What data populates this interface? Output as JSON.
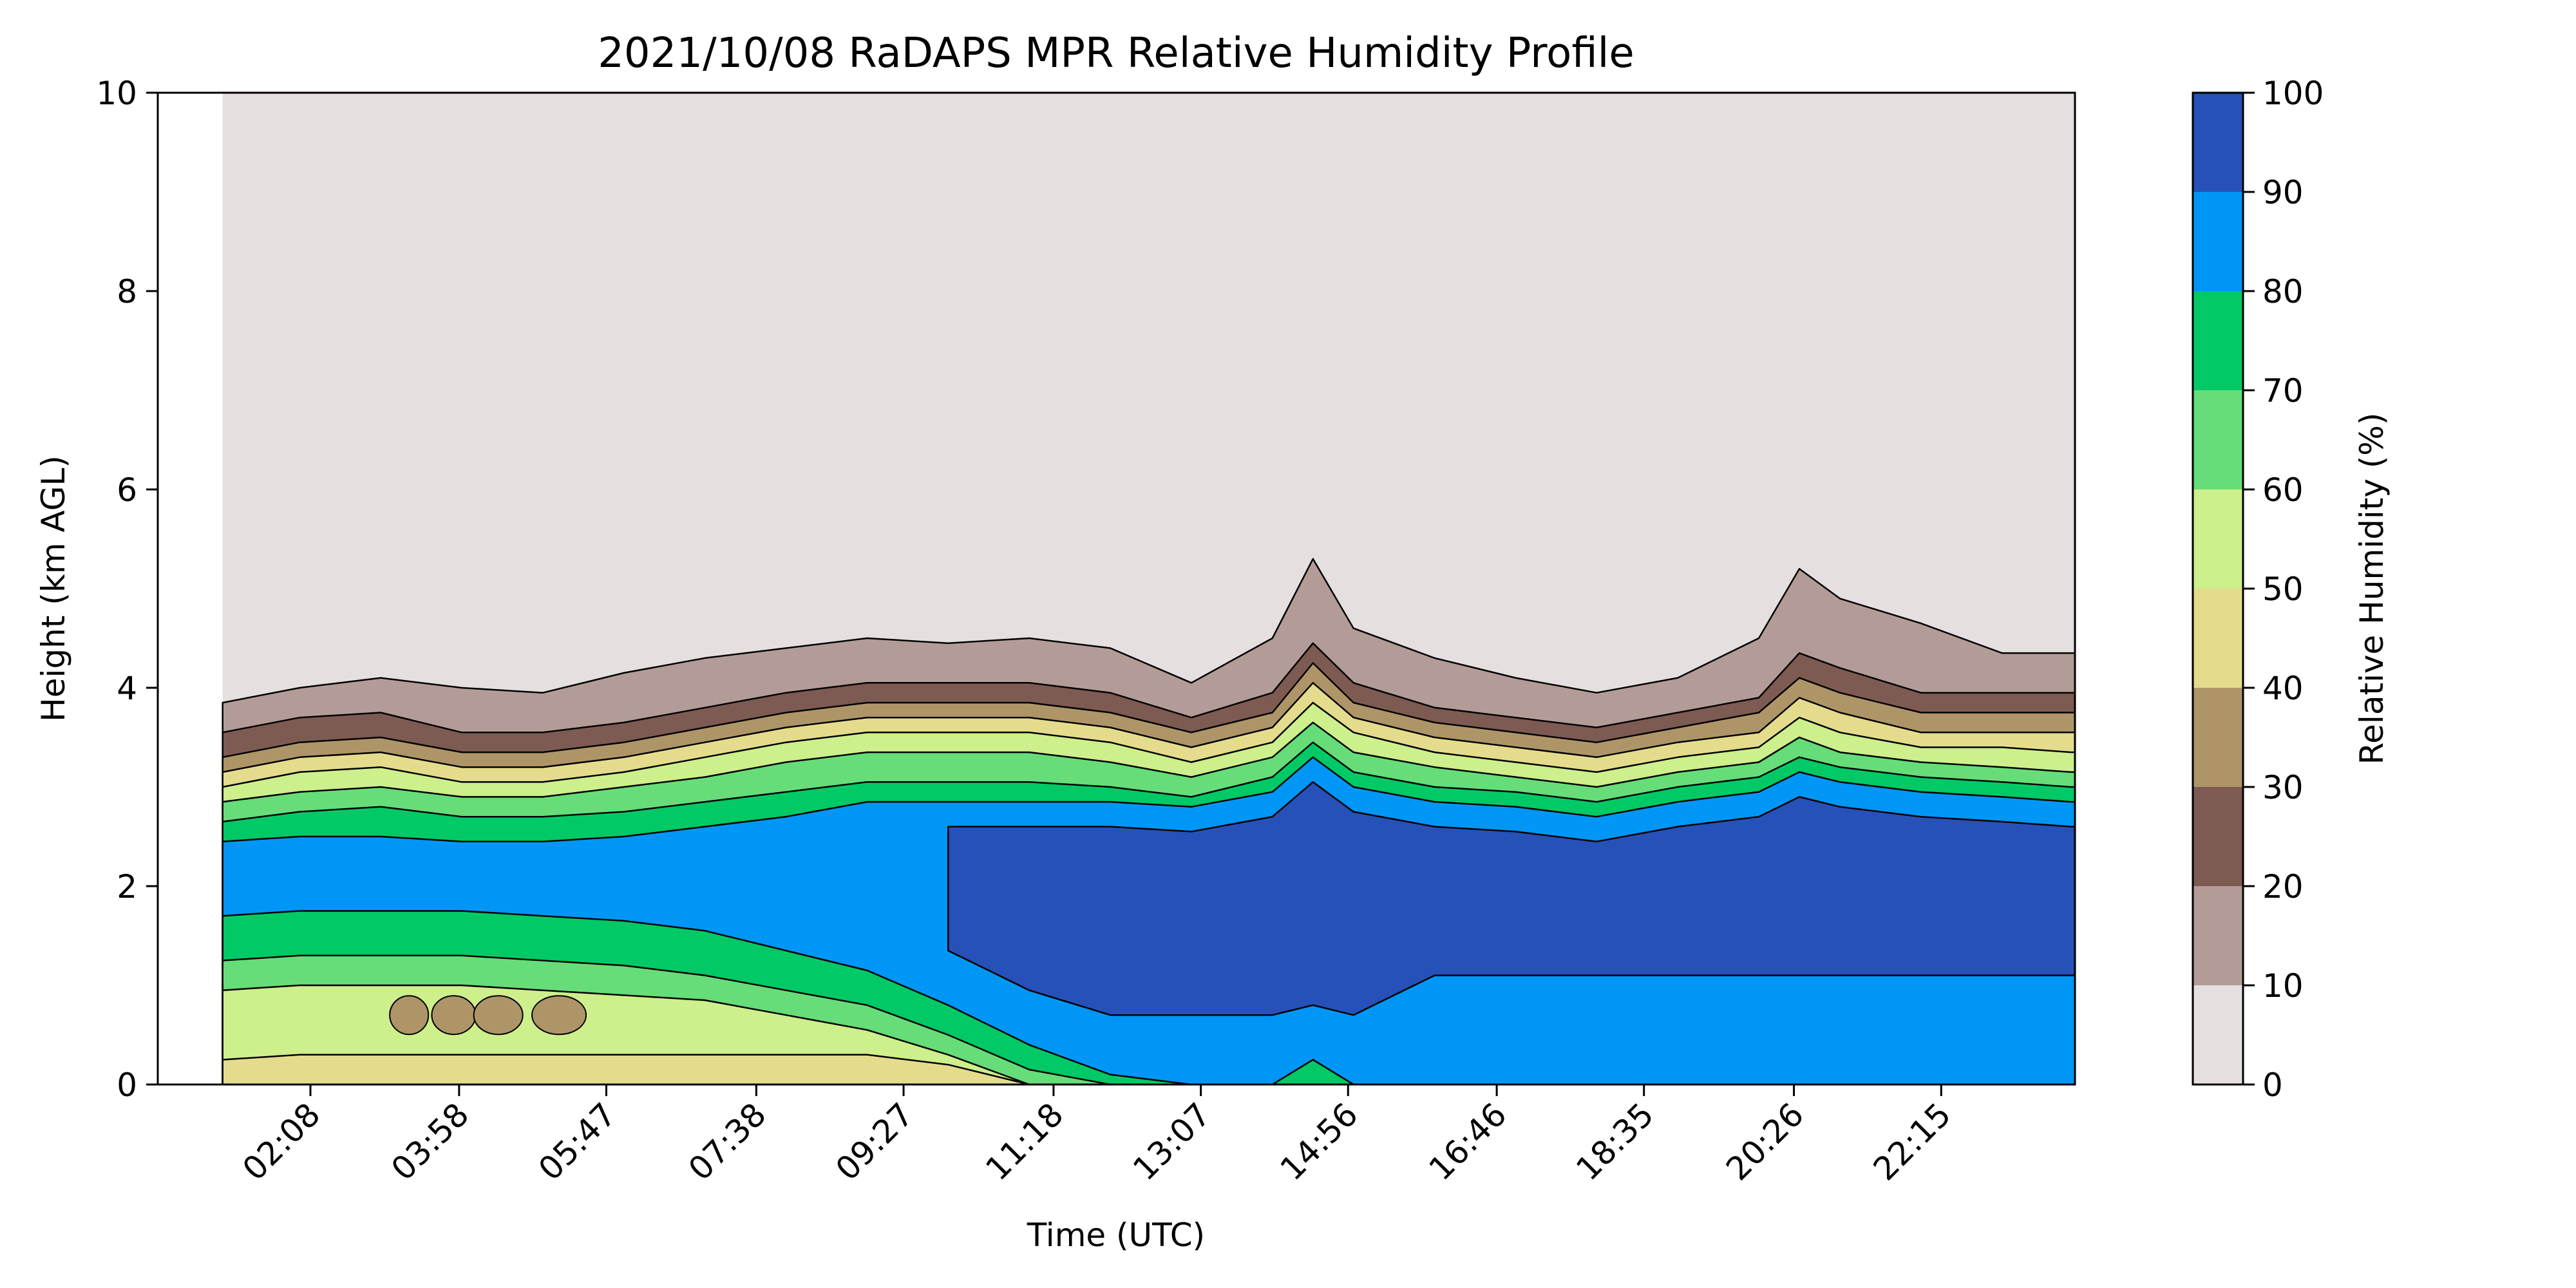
{
  "chart_data": {
    "type": "heatmap",
    "subtype": "filled-contour",
    "title": "2021/10/08 RaDAPS MPR Relative Humidity Profile",
    "xlabel": "Time (UTC)",
    "ylabel": "Height (km AGL)",
    "colorbar_label": "Relative Humidity (%)",
    "x_ticks": [
      "02:08",
      "03:58",
      "05:47",
      "07:38",
      "09:27",
      "11:18",
      "13:07",
      "14:56",
      "16:46",
      "18:35",
      "20:26",
      "22:15"
    ],
    "x_tick_hours": [
      2.133,
      3.967,
      5.783,
      7.633,
      9.45,
      11.3,
      13.117,
      14.933,
      16.767,
      18.583,
      20.433,
      22.25
    ],
    "x_range_hours": [
      0.25,
      23.9
    ],
    "data_start_hours": 1.05,
    "ylim": [
      0,
      10
    ],
    "y_ticks": [
      0,
      2,
      4,
      6,
      8,
      10
    ],
    "levels": [
      0,
      10,
      20,
      30,
      40,
      50,
      60,
      70,
      80,
      90,
      100
    ],
    "level_colors": [
      "#e6dfdf",
      "#b39c97",
      "#7d5a52",
      "#ae9568",
      "#e4dc8c",
      "#cdef8c",
      "#66dd78",
      "#00c965",
      "#0096f5",
      "#2551b8"
    ],
    "times_hours": [
      1.05,
      2,
      3,
      4,
      5,
      6,
      7,
      8,
      9,
      10,
      11,
      12,
      13,
      14,
      14.5,
      15,
      16,
      17,
      18,
      19,
      20,
      20.5,
      21,
      22,
      23,
      23.85
    ],
    "contour_heights_km": {
      "10": [
        3.85,
        4.0,
        4.1,
        4.0,
        3.95,
        4.15,
        4.3,
        4.4,
        4.5,
        4.45,
        4.5,
        4.4,
        4.05,
        4.5,
        5.3,
        4.6,
        4.3,
        4.1,
        3.95,
        4.1,
        4.5,
        5.2,
        4.9,
        4.65,
        4.35,
        4.35
      ],
      "20": [
        3.55,
        3.7,
        3.75,
        3.55,
        3.55,
        3.65,
        3.8,
        3.95,
        4.05,
        4.05,
        4.05,
        3.95,
        3.7,
        3.95,
        4.45,
        4.05,
        3.8,
        3.7,
        3.6,
        3.75,
        3.9,
        4.35,
        4.2,
        3.95,
        3.95,
        3.95
      ],
      "30": [
        3.3,
        3.45,
        3.5,
        3.35,
        3.35,
        3.45,
        3.6,
        3.75,
        3.85,
        3.85,
        3.85,
        3.75,
        3.55,
        3.75,
        4.25,
        3.85,
        3.65,
        3.55,
        3.45,
        3.6,
        3.75,
        4.1,
        3.95,
        3.75,
        3.75,
        3.75
      ],
      "40": [
        3.15,
        3.3,
        3.35,
        3.2,
        3.2,
        3.3,
        3.45,
        3.6,
        3.7,
        3.7,
        3.7,
        3.6,
        3.4,
        3.6,
        4.05,
        3.7,
        3.5,
        3.4,
        3.3,
        3.45,
        3.55,
        3.9,
        3.75,
        3.55,
        3.55,
        3.55
      ],
      "50": [
        3.0,
        3.15,
        3.2,
        3.05,
        3.05,
        3.15,
        3.3,
        3.45,
        3.55,
        3.55,
        3.55,
        3.45,
        3.25,
        3.45,
        3.85,
        3.55,
        3.35,
        3.25,
        3.15,
        3.3,
        3.4,
        3.7,
        3.55,
        3.4,
        3.4,
        3.35
      ],
      "60": [
        2.85,
        2.95,
        3.0,
        2.9,
        2.9,
        3.0,
        3.1,
        3.25,
        3.35,
        3.35,
        3.35,
        3.25,
        3.1,
        3.3,
        3.65,
        3.35,
        3.2,
        3.1,
        3.0,
        3.15,
        3.25,
        3.5,
        3.35,
        3.25,
        3.2,
        3.15
      ],
      "70": [
        2.65,
        2.75,
        2.8,
        2.7,
        2.7,
        2.75,
        2.85,
        2.95,
        3.05,
        3.05,
        3.05,
        3.0,
        2.9,
        3.1,
        3.45,
        3.15,
        3.0,
        2.95,
        2.85,
        3.0,
        3.1,
        3.3,
        3.2,
        3.1,
        3.05,
        3.0
      ],
      "80": [
        2.45,
        2.5,
        2.5,
        2.45,
        2.45,
        2.5,
        2.6,
        2.7,
        2.85,
        2.85,
        2.85,
        2.85,
        2.8,
        2.95,
        3.3,
        3.0,
        2.85,
        2.8,
        2.7,
        2.85,
        2.95,
        3.15,
        3.05,
        2.95,
        2.9,
        2.85
      ]
    },
    "contour_lower_heights_km": {
      "80": [
        1.7,
        1.75,
        1.75,
        1.75,
        1.7,
        1.65,
        1.55,
        1.35,
        1.15,
        0.8,
        0.4,
        0.1,
        0.0,
        0.0,
        0.25,
        0.0,
        0.0,
        0.0,
        0.0,
        0.0,
        0.0,
        0.0,
        0.0,
        0.0,
        0.0,
        0.0
      ],
      "70": [
        1.25,
        1.3,
        1.3,
        1.3,
        1.25,
        1.2,
        1.1,
        0.95,
        0.8,
        0.5,
        0.15,
        0.0,
        0.0,
        0.0,
        0.0,
        0.0,
        0.0,
        0.0,
        0.0,
        0.0,
        0.0,
        0.0,
        0.0,
        0.0,
        0.0,
        0.0
      ],
      "60": [
        0.95,
        1.0,
        1.0,
        1.0,
        0.95,
        0.9,
        0.85,
        0.7,
        0.55,
        0.3,
        0.0,
        0.0,
        0.0,
        0.0,
        0.0,
        0.0,
        0.0,
        0.0,
        0.0,
        0.0,
        0.0,
        0.0,
        0.0,
        0.0,
        0.0,
        0.0
      ],
      "50": [
        0.25,
        0.3,
        0.3,
        0.3,
        0.3,
        0.3,
        0.3,
        0.3,
        0.3,
        0.2,
        0.0,
        0.0,
        0.0,
        0.0,
        0.0,
        0.0,
        0.0,
        0.0,
        0.0,
        0.0,
        0.0,
        0.0,
        0.0,
        0.0,
        0.0,
        0.0
      ]
    },
    "top_region_value_range": [
      0,
      10
    ],
    "features": [
      {
        "kind": "saturated_layer",
        "range": "90-100",
        "from_time": "09:27",
        "to_time": "23:50",
        "min_bottom_km": 0.7,
        "max_top_km": 3.3
      },
      {
        "kind": "moist_surface",
        "range": "80-90",
        "from_time": "11:18",
        "to_time": "14:56",
        "bottom_km": 0.0,
        "top_km": 1.5
      },
      {
        "kind": "dry_pockets",
        "range": "30-40",
        "around_time": "03:58",
        "height_km": 0.7
      }
    ],
    "grid": false
  },
  "colorbar": {
    "ticks": [
      "0",
      "10",
      "20",
      "30",
      "40",
      "50",
      "60",
      "70",
      "80",
      "90",
      "100"
    ]
  }
}
